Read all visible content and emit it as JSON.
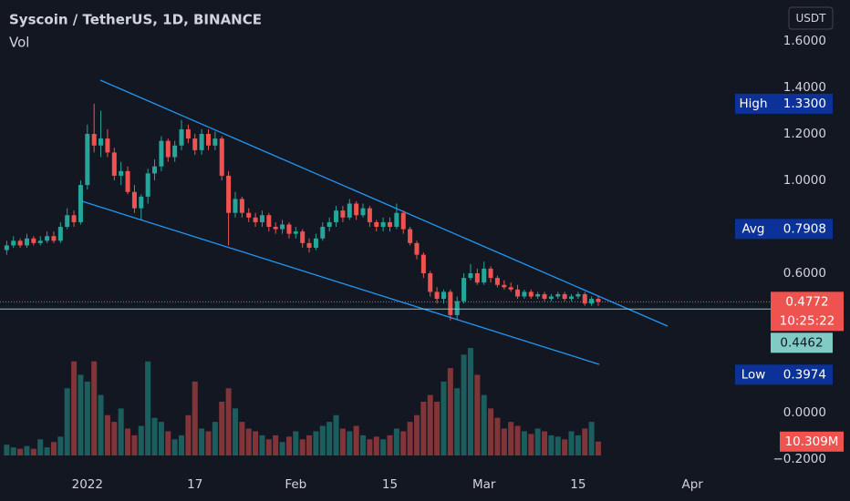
{
  "chart_data": {
    "type": "candlestick",
    "title": "Syscoin / TetherUS, 1D, BINANCE",
    "volume_label": "Vol",
    "currency": "USDT",
    "up_color": "#26a69a",
    "down_color": "#ef5350",
    "x": [
      "2021-12-20",
      "2021-12-21",
      "2021-12-22",
      "2021-12-23",
      "2021-12-24",
      "2021-12-25",
      "2021-12-26",
      "2021-12-27",
      "2021-12-28",
      "2021-12-29",
      "2021-12-30",
      "2021-12-31",
      "2022-01-01",
      "2022-01-02",
      "2022-01-03",
      "2022-01-04",
      "2022-01-05",
      "2022-01-06",
      "2022-01-07",
      "2022-01-08",
      "2022-01-09",
      "2022-01-10",
      "2022-01-11",
      "2022-01-12",
      "2022-01-13",
      "2022-01-14",
      "2022-01-15",
      "2022-01-16",
      "2022-01-17",
      "2022-01-18",
      "2022-01-19",
      "2022-01-20",
      "2022-01-21",
      "2022-01-22",
      "2022-01-23",
      "2022-01-24",
      "2022-01-25",
      "2022-01-26",
      "2022-01-27",
      "2022-01-28",
      "2022-01-29",
      "2022-01-30",
      "2022-01-31",
      "2022-02-01",
      "2022-02-02",
      "2022-02-03",
      "2022-02-04",
      "2022-02-05",
      "2022-02-06",
      "2022-02-07",
      "2022-02-08",
      "2022-02-09",
      "2022-02-10",
      "2022-02-11",
      "2022-02-12",
      "2022-02-13",
      "2022-02-14",
      "2022-02-15",
      "2022-02-16",
      "2022-02-17",
      "2022-02-18",
      "2022-02-19",
      "2022-02-20",
      "2022-02-21",
      "2022-02-22",
      "2022-02-23",
      "2022-02-24",
      "2022-02-25",
      "2022-02-26",
      "2022-02-27",
      "2022-02-28",
      "2022-03-01",
      "2022-03-02",
      "2022-03-03",
      "2022-03-04",
      "2022-03-05",
      "2022-03-06",
      "2022-03-07",
      "2022-03-08",
      "2022-03-09",
      "2022-03-10",
      "2022-03-11",
      "2022-03-12",
      "2022-03-13",
      "2022-03-14",
      "2022-03-15",
      "2022-03-16",
      "2022-03-17",
      "2022-03-18"
    ],
    "open": [
      0.7,
      0.72,
      0.74,
      0.72,
      0.75,
      0.73,
      0.74,
      0.76,
      0.74,
      0.8,
      0.85,
      0.82,
      0.98,
      1.2,
      1.15,
      1.18,
      1.12,
      1.02,
      1.04,
      0.95,
      0.88,
      0.93,
      1.03,
      1.06,
      1.17,
      1.1,
      1.15,
      1.22,
      1.18,
      1.13,
      1.2,
      1.15,
      1.18,
      1.02,
      0.86,
      0.92,
      0.86,
      0.84,
      0.82,
      0.85,
      0.8,
      0.79,
      0.81,
      0.77,
      0.78,
      0.73,
      0.71,
      0.75,
      0.8,
      0.82,
      0.87,
      0.84,
      0.9,
      0.85,
      0.88,
      0.82,
      0.8,
      0.82,
      0.8,
      0.86,
      0.79,
      0.73,
      0.68,
      0.6,
      0.52,
      0.49,
      0.52,
      0.42,
      0.48,
      0.58,
      0.6,
      0.56,
      0.62,
      0.58,
      0.55,
      0.54,
      0.53,
      0.5,
      0.52,
      0.5,
      0.51,
      0.49,
      0.5,
      0.51,
      0.49,
      0.5,
      0.51,
      0.47,
      0.49
    ],
    "high": [
      0.74,
      0.76,
      0.75,
      0.77,
      0.76,
      0.76,
      0.78,
      0.78,
      0.82,
      0.88,
      0.87,
      1.0,
      1.24,
      1.33,
      1.3,
      1.22,
      1.14,
      1.08,
      1.06,
      0.98,
      0.94,
      1.05,
      1.09,
      1.19,
      1.18,
      1.17,
      1.26,
      1.24,
      1.2,
      1.22,
      1.22,
      1.21,
      1.19,
      1.04,
      0.95,
      0.93,
      0.88,
      0.86,
      0.87,
      0.86,
      0.82,
      0.83,
      0.82,
      0.8,
      0.79,
      0.75,
      0.77,
      0.82,
      0.84,
      0.89,
      0.89,
      0.92,
      0.91,
      0.9,
      0.89,
      0.83,
      0.84,
      0.84,
      0.9,
      0.87,
      0.8,
      0.74,
      0.69,
      0.61,
      0.54,
      0.53,
      0.53,
      0.5,
      0.6,
      0.64,
      0.62,
      0.65,
      0.63,
      0.59,
      0.57,
      0.56,
      0.55,
      0.53,
      0.53,
      0.52,
      0.52,
      0.51,
      0.52,
      0.52,
      0.51,
      0.52,
      0.52,
      0.5,
      0.5
    ],
    "low": [
      0.68,
      0.71,
      0.71,
      0.71,
      0.72,
      0.72,
      0.73,
      0.73,
      0.73,
      0.79,
      0.8,
      0.81,
      0.96,
      1.12,
      1.1,
      1.1,
      1.0,
      0.98,
      0.94,
      0.86,
      0.83,
      0.9,
      1.0,
      1.04,
      1.08,
      1.08,
      1.13,
      1.16,
      1.11,
      1.11,
      1.13,
      1.13,
      1.0,
      0.72,
      0.84,
      0.84,
      0.82,
      0.8,
      0.8,
      0.78,
      0.77,
      0.77,
      0.75,
      0.75,
      0.71,
      0.69,
      0.7,
      0.74,
      0.78,
      0.8,
      0.82,
      0.83,
      0.83,
      0.84,
      0.8,
      0.78,
      0.78,
      0.78,
      0.79,
      0.77,
      0.72,
      0.66,
      0.58,
      0.5,
      0.47,
      0.47,
      0.3974,
      0.4,
      0.47,
      0.57,
      0.55,
      0.55,
      0.56,
      0.54,
      0.53,
      0.52,
      0.49,
      0.49,
      0.49,
      0.49,
      0.48,
      0.48,
      0.49,
      0.48,
      0.48,
      0.49,
      0.46,
      0.46,
      0.46
    ],
    "close": [
      0.72,
      0.74,
      0.72,
      0.75,
      0.73,
      0.74,
      0.76,
      0.74,
      0.8,
      0.85,
      0.82,
      0.98,
      1.2,
      1.15,
      1.18,
      1.12,
      1.02,
      1.04,
      0.95,
      0.88,
      0.93,
      1.03,
      1.06,
      1.17,
      1.1,
      1.15,
      1.22,
      1.18,
      1.13,
      1.2,
      1.15,
      1.18,
      1.02,
      0.86,
      0.92,
      0.86,
      0.84,
      0.82,
      0.85,
      0.8,
      0.79,
      0.81,
      0.77,
      0.78,
      0.73,
      0.71,
      0.75,
      0.8,
      0.82,
      0.87,
      0.84,
      0.9,
      0.85,
      0.88,
      0.82,
      0.8,
      0.82,
      0.8,
      0.86,
      0.79,
      0.73,
      0.68,
      0.6,
      0.52,
      0.49,
      0.52,
      0.42,
      0.48,
      0.58,
      0.6,
      0.56,
      0.62,
      0.58,
      0.55,
      0.54,
      0.53,
      0.5,
      0.52,
      0.5,
      0.51,
      0.49,
      0.5,
      0.51,
      0.49,
      0.5,
      0.51,
      0.47,
      0.49,
      0.4772
    ],
    "volume": [
      8000000,
      6000000,
      5000000,
      7000000,
      5000000,
      12000000,
      6000000,
      10000000,
      14000000,
      50000000,
      70000000,
      60000000,
      55000000,
      70000000,
      45000000,
      30000000,
      25000000,
      35000000,
      20000000,
      15000000,
      22000000,
      70000000,
      28000000,
      25000000,
      18000000,
      12000000,
      15000000,
      30000000,
      55000000,
      20000000,
      18000000,
      25000000,
      40000000,
      50000000,
      35000000,
      25000000,
      20000000,
      18000000,
      15000000,
      12000000,
      15000000,
      10000000,
      14000000,
      18000000,
      12000000,
      15000000,
      18000000,
      22000000,
      25000000,
      30000000,
      20000000,
      18000000,
      22000000,
      15000000,
      12000000,
      14000000,
      12000000,
      15000000,
      20000000,
      18000000,
      25000000,
      30000000,
      40000000,
      45000000,
      40000000,
      55000000,
      65000000,
      50000000,
      75000000,
      80000000,
      60000000,
      45000000,
      35000000,
      28000000,
      20000000,
      25000000,
      22000000,
      18000000,
      16000000,
      20000000,
      18000000,
      15000000,
      14000000,
      12000000,
      18000000,
      15000000,
      20000000,
      25000000,
      10309000
    ],
    "last_volume": {
      "value": 10309000,
      "label": "10.309M"
    },
    "ylim": [
      -0.2431,
      1.7765
    ],
    "yticks": [
      {
        "value": 1.6,
        "label": "1.6000"
      },
      {
        "value": 1.4,
        "label": "1.4000"
      },
      {
        "value": 1.2,
        "label": "1.2000"
      },
      {
        "value": 1.0,
        "label": "1.0000"
      },
      {
        "value": 0.6,
        "label": "0.6000"
      },
      {
        "value": 0.0,
        "label": "0.0000"
      },
      {
        "value": -0.2,
        "label": "−0.2000"
      }
    ],
    "xlim": [
      "2021-12-19",
      "2022-04-14"
    ],
    "xticks": [
      {
        "value": "2022-01-01",
        "label": "2022"
      },
      {
        "value": "2022-01-17",
        "label": "17"
      },
      {
        "value": "2022-02-01",
        "label": "Feb"
      },
      {
        "value": "2022-02-15",
        "label": "15"
      },
      {
        "value": "2022-03-01",
        "label": "Mar"
      },
      {
        "value": "2022-03-15",
        "label": "15"
      },
      {
        "value": "2022-04-01",
        "label": "Apr"
      }
    ],
    "stats": [
      {
        "name": "High",
        "value": {
          "value": 1.33,
          "label": "1.3300"
        }
      },
      {
        "name": "Avg",
        "value": {
          "value": 0.7908,
          "label": "0.7908"
        }
      },
      {
        "name": "Low",
        "value": {
          "value": 0.3974,
          "label": "0.3974"
        }
      }
    ],
    "last_price": {
      "value": 0.4772,
      "label": "0.4772"
    },
    "countdown": "10:25:22",
    "line_price": {
      "value": 0.4462,
      "label": "0.4462"
    }
  }
}
